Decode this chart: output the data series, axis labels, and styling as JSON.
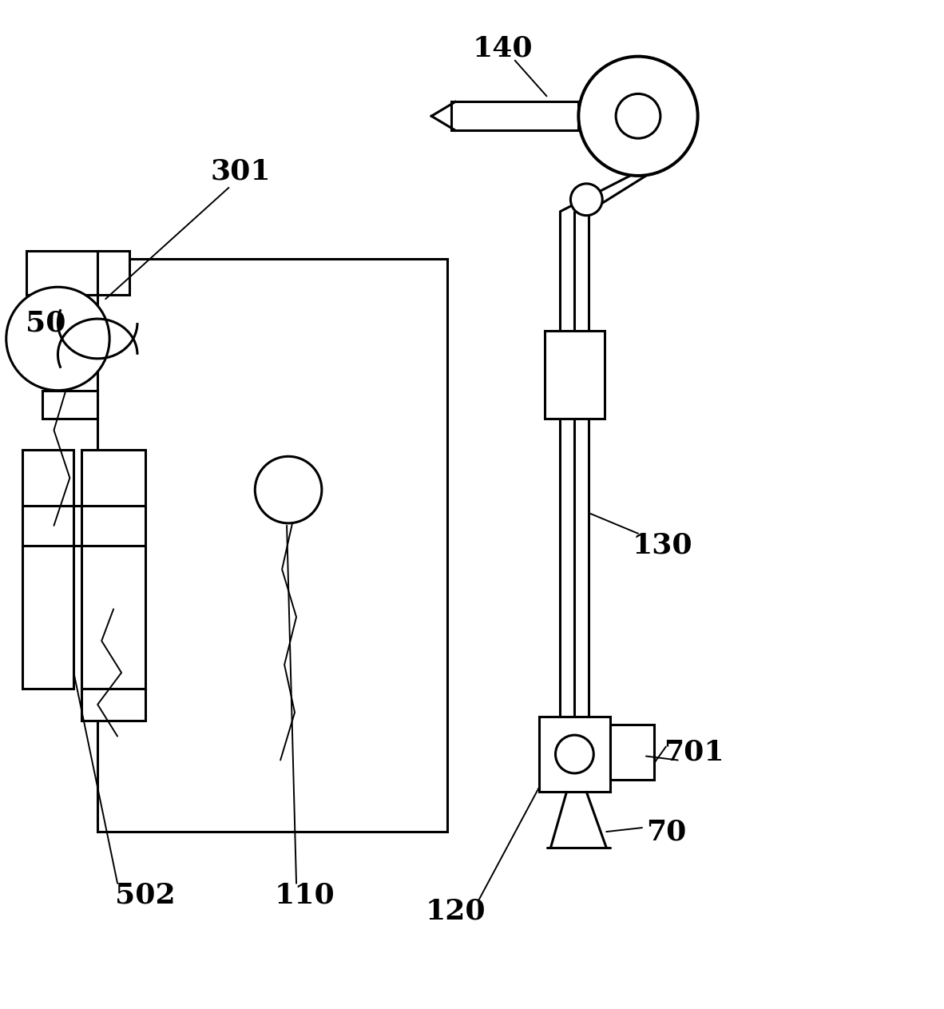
{
  "bg_color": "#ffffff",
  "line_color": "#000000",
  "lw": 2.2,
  "lw_thin": 1.4,
  "label_fontsize": 26,
  "figsize": [
    11.82,
    12.63
  ],
  "dpi": 100
}
